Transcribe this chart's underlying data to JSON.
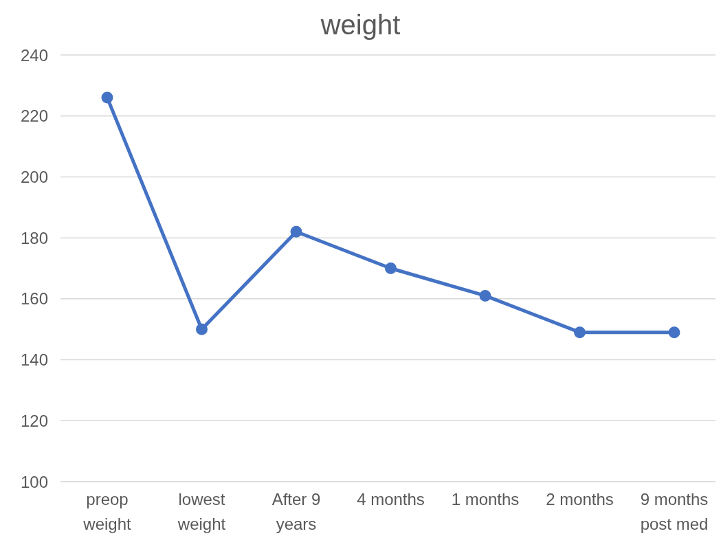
{
  "chart_data": {
    "type": "line",
    "title": "weight",
    "categories": [
      "preop weight",
      "lowest weight",
      "After 9 years",
      "4 months",
      "1 months",
      "2 months",
      "9 months post med"
    ],
    "series": [
      {
        "color": "#4472c4",
        "values": [
          226,
          150,
          182,
          170,
          161,
          149,
          149
        ]
      }
    ],
    "ylim": [
      100,
      240
    ],
    "yticks": [
      100,
      120,
      140,
      160,
      180,
      200,
      220,
      240
    ],
    "grid": "y",
    "marker": "circle",
    "line_style": "solid"
  }
}
